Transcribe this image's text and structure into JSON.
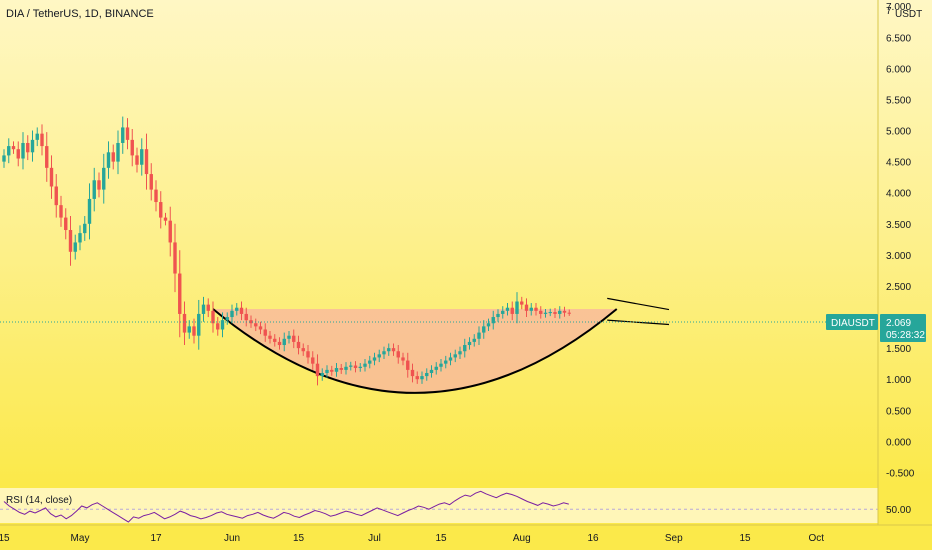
{
  "header": {
    "symbol_title": "DIA / TetherUS, 1D, BINANCE",
    "currency": "USDT",
    "top_price": "7"
  },
  "price_label": {
    "ticker": "DIAUSDT",
    "price": "2.069",
    "countdown": "05:28:32"
  },
  "rsi": {
    "label": "RSI (14, close)",
    "value_label": "50.00"
  },
  "colors": {
    "up": "#26a69a",
    "down": "#ef5350",
    "rsi_line": "#7b1fa2",
    "cup_fill": "#f8b4a0",
    "price_tag": "#26a69a"
  },
  "chart_data": {
    "type": "candlestick",
    "title": "DIA / TetherUS, 1D, BINANCE",
    "ylabel": "USDT",
    "ylim": [
      -0.75,
      7.1
    ],
    "y_ticks": [
      -0.5,
      0.0,
      0.5,
      1.0,
      1.5,
      2.0,
      2.5,
      3.0,
      3.5,
      4.0,
      4.5,
      5.0,
      5.5,
      6.0,
      6.5,
      7.0
    ],
    "y_tick_labels": [
      "-0.500",
      "0.000",
      "0.500",
      "1.000",
      "1.500",
      "2.000",
      "2.500",
      "3.000",
      "3.500",
      "4.000",
      "4.500",
      "5.000",
      "5.500",
      "6.000",
      "6.500",
      "7.000"
    ],
    "x_tick_labels": [
      "15",
      "May",
      "17",
      "Jun",
      "15",
      "Jul",
      "15",
      "Aug",
      "16",
      "Sep",
      "15",
      "Oct"
    ],
    "x_tick_days": [
      0,
      16,
      32,
      48,
      62,
      78,
      92,
      109,
      124,
      141,
      156,
      171
    ],
    "last_price": 2.069,
    "closes": [
      4.6,
      4.75,
      4.7,
      4.55,
      4.8,
      4.65,
      4.85,
      4.95,
      4.75,
      4.4,
      4.1,
      3.8,
      3.6,
      3.4,
      3.05,
      3.2,
      3.35,
      3.5,
      3.9,
      4.2,
      4.05,
      4.4,
      4.65,
      4.5,
      4.8,
      5.05,
      4.85,
      4.6,
      4.45,
      4.7,
      4.3,
      4.05,
      3.85,
      3.6,
      3.55,
      3.2,
      2.7,
      2.05,
      1.75,
      1.85,
      1.7,
      2.05,
      2.2,
      2.1,
      1.9,
      1.8,
      1.95,
      2.0,
      2.1,
      2.15,
      2.05,
      1.95,
      1.9,
      1.85,
      1.8,
      1.7,
      1.65,
      1.6,
      1.55,
      1.65,
      1.7,
      1.6,
      1.5,
      1.45,
      1.35,
      1.25,
      1.05,
      1.1,
      1.15,
      1.12,
      1.18,
      1.15,
      1.2,
      1.22,
      1.18,
      1.2,
      1.25,
      1.3,
      1.35,
      1.4,
      1.45,
      1.5,
      1.45,
      1.35,
      1.3,
      1.15,
      1.05,
      1.0,
      1.05,
      1.1,
      1.15,
      1.2,
      1.25,
      1.3,
      1.35,
      1.4,
      1.45,
      1.55,
      1.6,
      1.65,
      1.75,
      1.85,
      1.9,
      2.0,
      2.05,
      2.1,
      2.15,
      2.05,
      2.25,
      2.2,
      2.1,
      2.15,
      2.1,
      2.05,
      2.07,
      2.08,
      2.05,
      2.1,
      2.07,
      2.069
    ],
    "cup_rim_price": 2.13,
    "cup_bottom_price": 0.78,
    "rsi_ref_level": 50,
    "rsi_values": [
      62,
      55,
      50,
      45,
      42,
      47,
      44,
      48,
      52,
      43,
      38,
      41,
      35,
      40,
      47,
      55,
      52,
      57,
      60,
      55,
      50,
      45,
      40,
      35,
      30,
      38,
      36,
      40,
      42,
      45,
      40,
      35,
      38,
      42,
      47,
      44,
      40,
      38,
      35,
      37,
      40,
      44,
      46,
      42,
      40,
      38,
      36,
      40,
      42,
      45,
      41,
      38,
      36,
      40,
      45,
      43,
      39,
      37,
      41,
      44,
      48,
      46,
      43,
      39,
      41,
      44,
      47,
      45,
      42,
      40,
      44,
      48,
      52,
      49,
      46,
      43,
      40,
      44,
      48,
      51,
      55,
      53,
      50,
      54,
      58,
      60,
      57,
      63,
      68,
      72,
      70,
      75,
      78,
      74,
      71,
      68,
      72,
      75,
      73,
      70,
      66,
      62,
      59,
      56,
      60,
      58,
      55,
      57,
      60,
      58
    ]
  }
}
